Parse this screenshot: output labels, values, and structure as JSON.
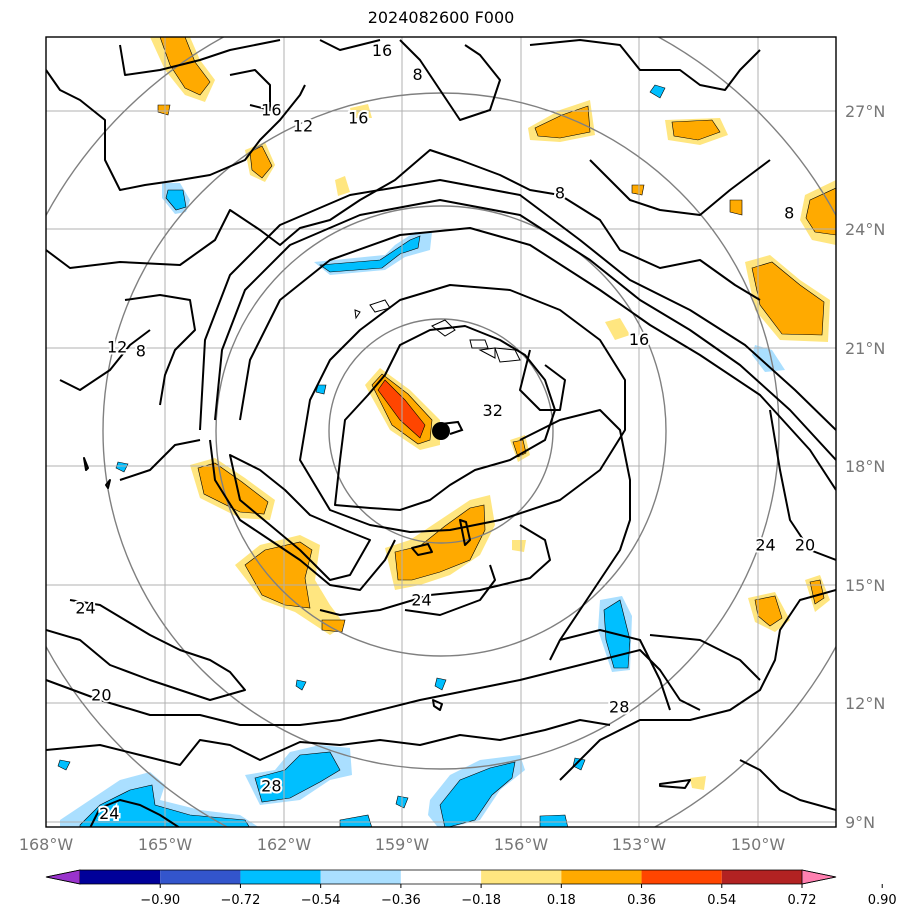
{
  "title": "2024082600 F000",
  "map": {
    "lon_labels": [
      "168°W",
      "165°W",
      "162°W",
      "159°W",
      "156°W",
      "153°W",
      "150°W"
    ],
    "lat_labels": [
      "27°N",
      "24°N",
      "21°N",
      "18°N",
      "15°N",
      "12°N",
      "9°N"
    ],
    "storm_center": {
      "lon": -158.0,
      "lat": 18.9
    },
    "range_rings": 4
  },
  "contour_labels": [
    {
      "text": "16",
      "lon": -159.5,
      "lat": 28.5
    },
    {
      "text": "8",
      "lon": -158.6,
      "lat": 27.9
    },
    {
      "text": "16",
      "lon": -162.3,
      "lat": 27.0
    },
    {
      "text": "12",
      "lon": -161.5,
      "lat": 26.6
    },
    {
      "text": "16",
      "lon": -160.1,
      "lat": 26.8
    },
    {
      "text": "8",
      "lon": -155.0,
      "lat": 24.9
    },
    {
      "text": "12",
      "lon": -166.2,
      "lat": 21.0
    },
    {
      "text": "8",
      "lon": -165.6,
      "lat": 20.9
    },
    {
      "text": "16",
      "lon": -153.0,
      "lat": 21.2
    },
    {
      "text": "32",
      "lon": -156.7,
      "lat": 19.4
    },
    {
      "text": "8",
      "lon": -149.2,
      "lat": 24.4
    },
    {
      "text": "24",
      "lon": -149.8,
      "lat": 16.0
    },
    {
      "text": "20",
      "lon": -148.8,
      "lat": 16.0
    },
    {
      "text": "24",
      "lon": -167.0,
      "lat": 14.4
    },
    {
      "text": "24",
      "lon": -158.5,
      "lat": 14.6
    },
    {
      "text": "20",
      "lon": -166.6,
      "lat": 12.2
    },
    {
      "text": "28",
      "lon": -153.5,
      "lat": 11.9
    },
    {
      "text": "28",
      "lon": -162.3,
      "lat": 9.9
    },
    {
      "text": "24",
      "lon": -166.4,
      "lat": 9.2
    }
  ],
  "colorbar": {
    "ticks": [
      "−0.90",
      "−0.72",
      "−0.54",
      "−0.36",
      "−0.18",
      "0.18",
      "0.36",
      "0.54",
      "0.72",
      "0.90"
    ],
    "colors": [
      "#9933cc",
      "#000099",
      "#3355cc",
      "#00bfff",
      "#aadfff",
      "#ffffff",
      "#ffe680",
      "#ffaa00",
      "#ff4500",
      "#b22222",
      "#ff80b0"
    ]
  }
}
